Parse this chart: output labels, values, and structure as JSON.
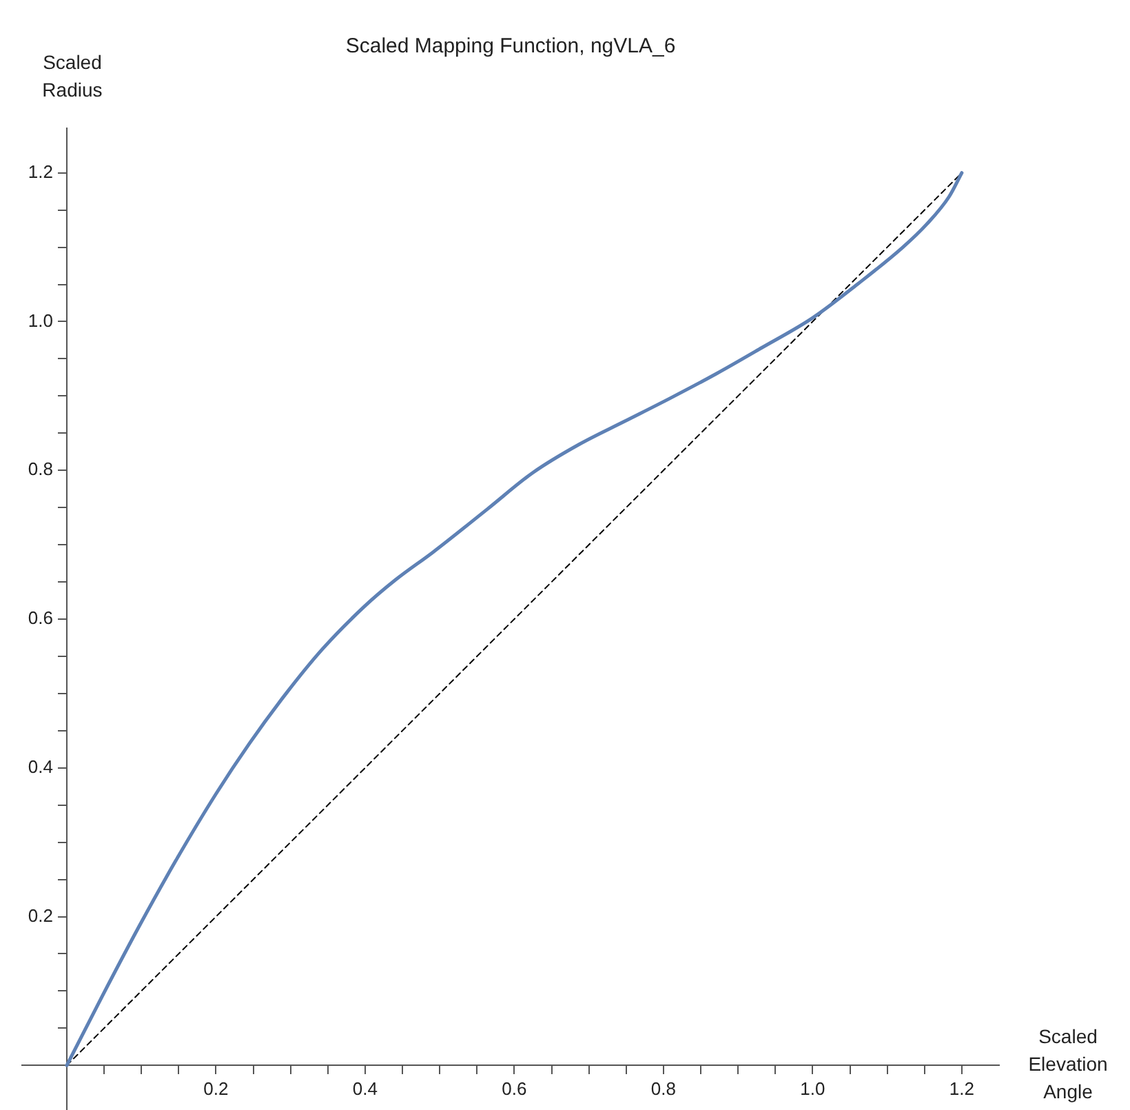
{
  "chart_data": {
    "type": "line",
    "title": "Scaled Mapping Function, ngVLA_6",
    "xlabel": "Scaled Elevation Angle",
    "ylabel": "Scaled Radius",
    "xlim": [
      -0.06,
      1.25
    ],
    "ylim": [
      -0.06,
      1.26
    ],
    "xticks": [
      {
        "value": 0.05,
        "label": null
      },
      {
        "value": 0.1,
        "label": null
      },
      {
        "value": 0.15,
        "label": null
      },
      0.2,
      {
        "value": 0.25,
        "label": null
      },
      {
        "value": 0.3,
        "label": null
      },
      {
        "value": 0.35,
        "label": null
      },
      0.4,
      {
        "value": 0.45,
        "label": null
      },
      {
        "value": 0.5,
        "label": null
      },
      {
        "value": 0.55,
        "label": null
      },
      0.6,
      {
        "value": 0.65,
        "label": null
      },
      {
        "value": 0.7,
        "label": null
      },
      {
        "value": 0.75,
        "label": null
      },
      0.8,
      {
        "value": 0.85,
        "label": null
      },
      {
        "value": 0.9,
        "label": null
      },
      {
        "value": 0.95,
        "label": null
      },
      {
        "value": 1,
        "label": "1.0"
      },
      {
        "value": 1.05,
        "label": null
      },
      {
        "value": 1.1,
        "label": null
      },
      {
        "value": 1.15,
        "label": null
      },
      1.2
    ],
    "yticks": [
      {
        "value": 0.05,
        "label": null
      },
      {
        "value": 0.1,
        "label": null
      },
      {
        "value": 0.15,
        "label": null
      },
      0.2,
      {
        "value": 0.25,
        "label": null
      },
      {
        "value": 0.3,
        "label": null
      },
      {
        "value": 0.35,
        "label": null
      },
      0.4,
      {
        "value": 0.45,
        "label": null
      },
      {
        "value": 0.5,
        "label": null
      },
      {
        "value": 0.55,
        "label": null
      },
      0.6,
      {
        "value": 0.65,
        "label": null
      },
      {
        "value": 0.7,
        "label": null
      },
      {
        "value": 0.75,
        "label": null
      },
      0.8,
      {
        "value": 0.85,
        "label": null
      },
      {
        "value": 0.9,
        "label": null
      },
      {
        "value": 0.95,
        "label": null
      },
      {
        "value": 1,
        "label": "1.0"
      },
      {
        "value": 1.05,
        "label": null
      },
      {
        "value": 1.1,
        "label": null
      },
      {
        "value": 1.15,
        "label": null
      },
      1.2
    ],
    "grid": false,
    "legend": false,
    "marker": "none",
    "series": [
      {
        "color": "#5e81b5",
        "line_style": "solid",
        "x": [
          0,
          0.048,
          0.097,
          0.146,
          0.2,
          0.245,
          0.294,
          0.343,
          0.399,
          0.441,
          0.491,
          0.564,
          0.625,
          0.687,
          0.748,
          0.809,
          0.871,
          0.932,
          1.0,
          1.061,
          1.121,
          1.153,
          1.183,
          1.2
        ],
        "values": [
          0,
          0.094,
          0.187,
          0.275,
          0.365,
          0.433,
          0.5,
          0.56,
          0.617,
          0.653,
          0.69,
          0.748,
          0.797,
          0.835,
          0.866,
          0.897,
          0.93,
          0.965,
          1.005,
          1.051,
          1.1,
          1.131,
          1.168,
          1.2
        ]
      },
      {
        "color": "#000000",
        "line_style": "dashed",
        "x": [
          0,
          1.2
        ],
        "values": [
          0,
          1.2
        ]
      }
    ]
  }
}
